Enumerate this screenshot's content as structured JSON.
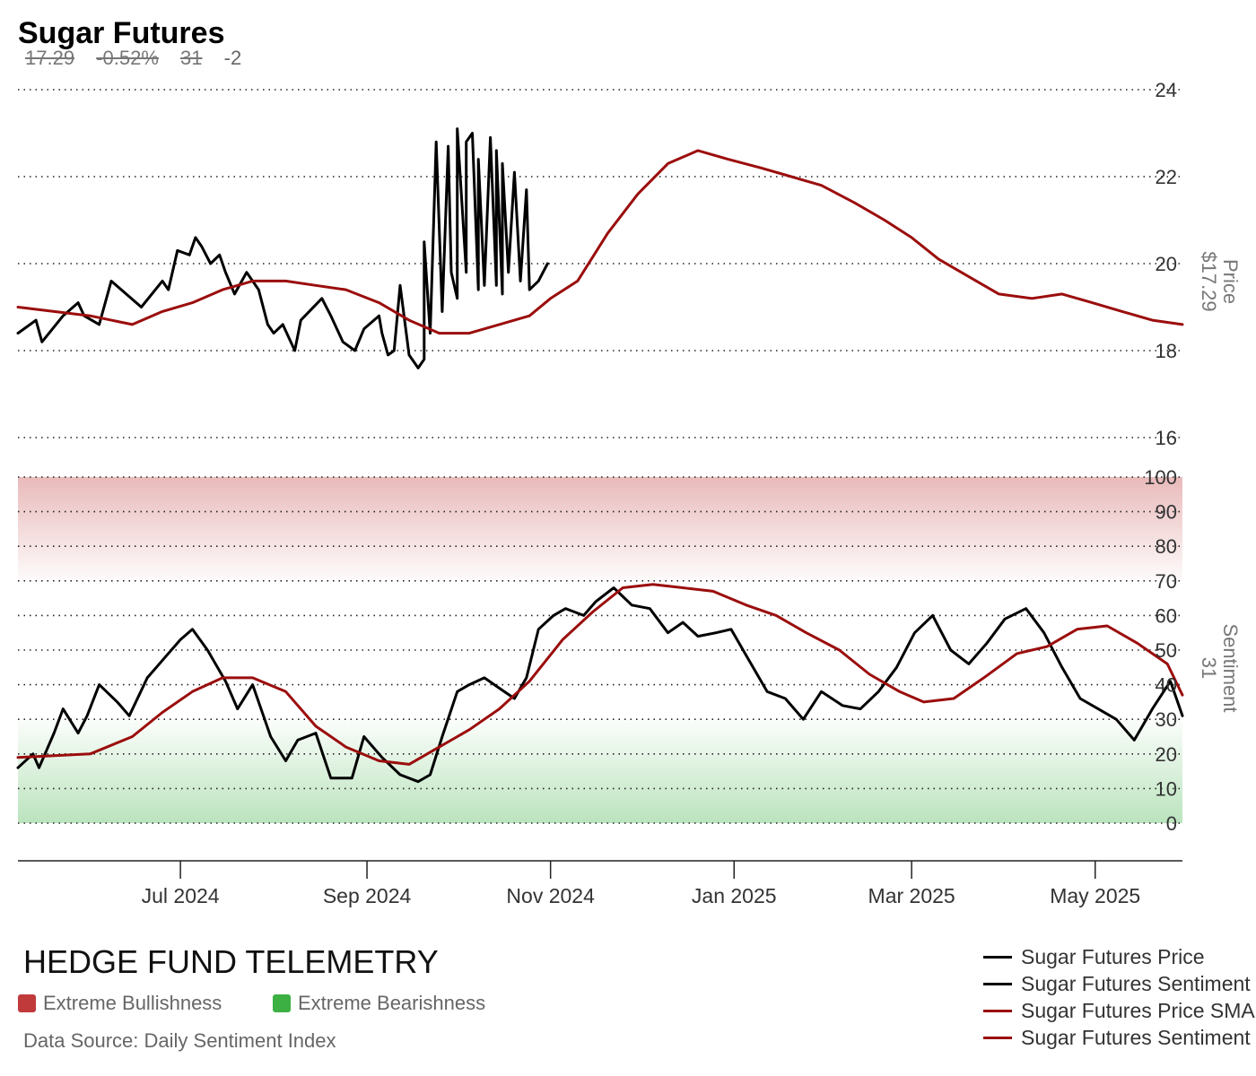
{
  "header": {
    "title": "Sugar Futures",
    "price": "17.29",
    "change_pct": "-0.52%",
    "sentiment": "31",
    "sentiment_change": "-2"
  },
  "footer": {
    "brand": "HEDGE FUND TELEMETRY",
    "extreme_bullish_label": "Extreme Bullishness",
    "extreme_bearish_label": "Extreme Bearishness",
    "source": "Data Source: Daily Sentiment Index"
  },
  "legend": [
    {
      "label": "Sugar Futures Price",
      "color": "#000000"
    },
    {
      "label": "Sugar Futures Sentiment",
      "color": "#000000"
    },
    {
      "label": "Sugar Futures Price SMA",
      "color": "#9b0d0d"
    },
    {
      "label": "Sugar Futures Sentiment SMA",
      "color": "#9b0d0d"
    }
  ],
  "colors": {
    "bullish": "#c0393b",
    "bearish": "#3cb043",
    "price": "#000000",
    "sma": "#9b0d0d"
  },
  "chart_data": [
    {
      "type": "line",
      "panel": "price",
      "ylabel": "Price",
      "ylabel_value": "$17.29",
      "ylim": [
        16,
        24
      ],
      "yticks": [
        16,
        18,
        20,
        22,
        24
      ],
      "xlim": [
        "2024-05-08",
        "2025-05-30"
      ],
      "x_ticks": [
        "2024-07-01",
        "2024-09-01",
        "2024-11-01",
        "2025-01-01",
        "2025-03-01",
        "2025-05-01"
      ],
      "x_tick_labels": [
        "Jul 2024",
        "Sep 2024",
        "Nov 2024",
        "Jan 2025",
        "Mar 2025",
        "May 2025"
      ],
      "grid": true,
      "series": [
        {
          "name": "Sugar Futures Price",
          "color": "#000000",
          "points": [
            [
              "2024-05-08",
              18.4
            ],
            [
              "2024-05-14",
              18.7
            ],
            [
              "2024-05-16",
              18.2
            ],
            [
              "2024-05-23",
              18.8
            ],
            [
              "2024-05-28",
              19.1
            ],
            [
              "2024-05-30",
              18.8
            ],
            [
              "2024-06-04",
              18.6
            ],
            [
              "2024-06-08",
              19.6
            ],
            [
              "2024-06-18",
              19.0
            ],
            [
              "2024-06-25",
              19.6
            ],
            [
              "2024-06-27",
              19.4
            ],
            [
              "2024-06-30",
              20.3
            ],
            [
              "2024-07-04",
              20.2
            ],
            [
              "2024-07-06",
              20.6
            ],
            [
              "2024-07-08",
              20.4
            ],
            [
              "2024-07-11",
              20.0
            ],
            [
              "2024-07-14",
              20.2
            ],
            [
              "2024-07-16",
              19.8
            ],
            [
              "2024-07-19",
              19.3
            ],
            [
              "2024-07-23",
              19.8
            ],
            [
              "2024-07-27",
              19.4
            ],
            [
              "2024-07-30",
              18.6
            ],
            [
              "2024-08-01",
              18.4
            ],
            [
              "2024-08-04",
              18.6
            ],
            [
              "2024-08-08",
              18.0
            ],
            [
              "2024-08-10",
              18.7
            ],
            [
              "2024-08-17",
              19.2
            ],
            [
              "2024-08-20",
              18.8
            ],
            [
              "2024-08-24",
              18.2
            ],
            [
              "2024-08-28",
              18.0
            ],
            [
              "2024-08-31",
              18.5
            ],
            [
              "2024-09-06",
              18.4
            ],
            [
              "2024-09-08",
              17.9
            ],
            [
              "2024-09-10",
              18.0
            ],
            [
              "2024-09-15",
              17.9
            ],
            [
              "2024-09-18",
              17.6
            ],
            [
              "2024-09-20",
              17.8
            ],
            [
              "2024-09-22",
              18.4
            ],
            [
              "2024-09-26",
              18.9
            ],
            [
              "2024-09-29",
              19.8
            ],
            [
              "2024-10-01",
              19.2
            ],
            [
              "2024-10-04",
              19.8
            ],
            [
              "2024-10-08",
              19.4
            ],
            [
              "2024-10-10",
              19.5
            ],
            [
              "2024-10-14",
              19.5
            ],
            [
              "2024-10-16",
              19.3
            ],
            [
              "2024-10-18",
              19.8
            ],
            [
              "2024-10-22",
              19.6
            ],
            [
              "2024-10-25",
              19.4
            ],
            [
              "2024-10-28",
              19.6
            ],
            [
              "2024-10-31",
              20.0
            ],
            [
              "2024-09-05",
              18.8
            ],
            [
              "2024-09-12",
              19.5
            ],
            [
              "2024-09-20",
              20.5
            ],
            [
              "2024-09-24",
              22.8
            ],
            [
              "2024-09-28",
              22.7
            ],
            [
              "2024-10-01",
              23.1
            ],
            [
              "2024-10-04",
              22.8
            ],
            [
              "2024-10-06",
              23.0
            ],
            [
              "2024-10-08",
              22.4
            ],
            [
              "2024-10-12",
              22.9
            ],
            [
              "2024-10-14",
              22.6
            ],
            [
              "2024-10-16",
              22.3
            ],
            [
              "2024-10-20",
              22.1
            ],
            [
              "2024-10-24",
              21.7
            ]
          ]
        },
        {
          "name": "Sugar Futures Price SMA",
          "color": "#9b0d0d",
          "points": [
            [
              "2024-05-08",
              19.0
            ],
            [
              "2024-06-01",
              18.8
            ],
            [
              "2024-06-15",
              18.6
            ],
            [
              "2024-06-25",
              18.9
            ],
            [
              "2024-07-05",
              19.1
            ],
            [
              "2024-07-15",
              19.4
            ],
            [
              "2024-07-25",
              19.6
            ],
            [
              "2024-08-05",
              19.6
            ],
            [
              "2024-08-15",
              19.5
            ],
            [
              "2024-08-25",
              19.4
            ],
            [
              "2024-09-05",
              19.1
            ],
            [
              "2024-09-15",
              18.7
            ],
            [
              "2024-09-25",
              18.4
            ],
            [
              "2024-10-05",
              18.4
            ],
            [
              "2024-10-15",
              18.6
            ],
            [
              "2024-10-25",
              18.8
            ],
            [
              "2024-11-01",
              19.2
            ],
            [
              "2024-11-10",
              19.6
            ],
            [
              "2024-11-20",
              20.7
            ],
            [
              "2024-11-30",
              21.6
            ],
            [
              "2024-12-10",
              22.3
            ],
            [
              "2024-12-20",
              22.6
            ],
            [
              "2024-12-30",
              22.4
            ],
            [
              "2025-01-10",
              22.2
            ],
            [
              "2025-01-20",
              22.0
            ],
            [
              "2025-01-30",
              21.8
            ],
            [
              "2025-02-10",
              21.4
            ],
            [
              "2025-02-20",
              21.0
            ],
            [
              "2025-03-01",
              20.6
            ],
            [
              "2025-03-10",
              20.1
            ],
            [
              "2025-03-20",
              19.7
            ],
            [
              "2025-03-30",
              19.3
            ],
            [
              "2025-04-10",
              19.2
            ],
            [
              "2025-04-20",
              19.3
            ],
            [
              "2025-04-30",
              19.1
            ],
            [
              "2025-05-10",
              18.9
            ],
            [
              "2025-05-20",
              18.7
            ],
            [
              "2025-05-30",
              18.6
            ]
          ]
        }
      ]
    },
    {
      "type": "line",
      "panel": "sentiment",
      "ylabel": "Sentiment",
      "ylabel_value": "31",
      "ylim": [
        0,
        100
      ],
      "yticks": [
        0,
        10,
        20,
        30,
        40,
        50,
        60,
        70,
        80,
        90,
        100
      ],
      "extreme_bullish_range": [
        70,
        100
      ],
      "extreme_bearish_range": [
        0,
        30
      ],
      "grid": true,
      "series": [
        {
          "name": "Sugar Futures Sentiment",
          "color": "#000000",
          "points": [
            [
              "2024-05-08",
              16
            ],
            [
              "2024-05-13",
              20
            ],
            [
              "2024-05-15",
              16
            ],
            [
              "2024-05-20",
              26
            ],
            [
              "2024-05-23",
              33
            ],
            [
              "2024-05-28",
              26
            ],
            [
              "2024-05-31",
              31
            ],
            [
              "2024-06-04",
              40
            ],
            [
              "2024-06-10",
              35
            ],
            [
              "2024-06-14",
              31
            ],
            [
              "2024-06-20",
              42
            ],
            [
              "2024-06-26",
              48
            ],
            [
              "2024-07-01",
              53
            ],
            [
              "2024-07-05",
              56
            ],
            [
              "2024-07-10",
              50
            ],
            [
              "2024-07-16",
              41
            ],
            [
              "2024-07-20",
              33
            ],
            [
              "2024-07-25",
              40
            ],
            [
              "2024-07-31",
              25
            ],
            [
              "2024-08-05",
              18
            ],
            [
              "2024-08-09",
              24
            ],
            [
              "2024-08-15",
              26
            ],
            [
              "2024-08-20",
              13
            ],
            [
              "2024-08-27",
              13
            ],
            [
              "2024-08-31",
              25
            ],
            [
              "2024-09-06",
              19
            ],
            [
              "2024-09-12",
              14
            ],
            [
              "2024-09-18",
              12
            ],
            [
              "2024-09-22",
              14
            ],
            [
              "2024-09-26",
              25
            ],
            [
              "2024-10-01",
              38
            ],
            [
              "2024-10-05",
              40
            ],
            [
              "2024-10-10",
              42
            ],
            [
              "2024-10-15",
              39
            ],
            [
              "2024-10-20",
              36
            ],
            [
              "2024-10-24",
              42
            ],
            [
              "2024-10-28",
              56
            ],
            [
              "2024-11-02",
              60
            ],
            [
              "2024-11-06",
              62
            ],
            [
              "2024-11-12",
              60
            ],
            [
              "2024-11-16",
              64
            ],
            [
              "2024-11-22",
              68
            ],
            [
              "2024-11-28",
              63
            ],
            [
              "2024-12-04",
              62
            ],
            [
              "2024-12-10",
              55
            ],
            [
              "2024-12-15",
              58
            ],
            [
              "2024-12-20",
              54
            ],
            [
              "2024-12-26",
              55
            ],
            [
              "2024-12-31",
              56
            ],
            [
              "2025-01-06",
              47
            ],
            [
              "2025-01-12",
              38
            ],
            [
              "2025-01-18",
              36
            ],
            [
              "2025-01-24",
              30
            ],
            [
              "2025-01-30",
              38
            ],
            [
              "2025-02-06",
              34
            ],
            [
              "2025-02-12",
              33
            ],
            [
              "2025-02-18",
              38
            ],
            [
              "2025-02-24",
              45
            ],
            [
              "2025-03-02",
              55
            ],
            [
              "2025-03-08",
              60
            ],
            [
              "2025-03-14",
              50
            ],
            [
              "2025-03-20",
              46
            ],
            [
              "2025-03-26",
              52
            ],
            [
              "2025-04-01",
              59
            ],
            [
              "2025-04-08",
              62
            ],
            [
              "2025-04-14",
              55
            ],
            [
              "2025-04-20",
              45
            ],
            [
              "2025-04-26",
              36
            ],
            [
              "2025-05-02",
              33
            ],
            [
              "2025-05-08",
              30
            ],
            [
              "2025-05-14",
              24
            ],
            [
              "2025-05-20",
              33
            ],
            [
              "2025-05-26",
              41
            ],
            [
              "2025-05-30",
              31
            ]
          ]
        },
        {
          "name": "Sugar Futures Sentiment SMA",
          "color": "#9b0d0d",
          "points": [
            [
              "2024-05-08",
              19
            ],
            [
              "2024-06-01",
              20
            ],
            [
              "2024-06-15",
              25
            ],
            [
              "2024-06-25",
              32
            ],
            [
              "2024-07-05",
              38
            ],
            [
              "2024-07-15",
              42
            ],
            [
              "2024-07-25",
              42
            ],
            [
              "2024-08-05",
              38
            ],
            [
              "2024-08-15",
              28
            ],
            [
              "2024-08-25",
              22
            ],
            [
              "2024-09-05",
              18
            ],
            [
              "2024-09-15",
              17
            ],
            [
              "2024-09-25",
              22
            ],
            [
              "2024-10-05",
              27
            ],
            [
              "2024-10-15",
              33
            ],
            [
              "2024-10-25",
              41
            ],
            [
              "2024-11-05",
              53
            ],
            [
              "2024-11-15",
              61
            ],
            [
              "2024-11-25",
              68
            ],
            [
              "2024-12-05",
              69
            ],
            [
              "2024-12-15",
              68
            ],
            [
              "2024-12-25",
              67
            ],
            [
              "2025-01-05",
              63
            ],
            [
              "2025-01-15",
              60
            ],
            [
              "2025-01-25",
              55
            ],
            [
              "2025-02-05",
              50
            ],
            [
              "2025-02-15",
              43
            ],
            [
              "2025-02-25",
              38
            ],
            [
              "2025-03-05",
              35
            ],
            [
              "2025-03-15",
              36
            ],
            [
              "2025-03-25",
              42
            ],
            [
              "2025-04-05",
              49
            ],
            [
              "2025-04-15",
              51
            ],
            [
              "2025-04-25",
              56
            ],
            [
              "2025-05-05",
              57
            ],
            [
              "2025-05-15",
              52
            ],
            [
              "2025-05-25",
              46
            ],
            [
              "2025-05-30",
              37
            ]
          ]
        }
      ]
    }
  ]
}
